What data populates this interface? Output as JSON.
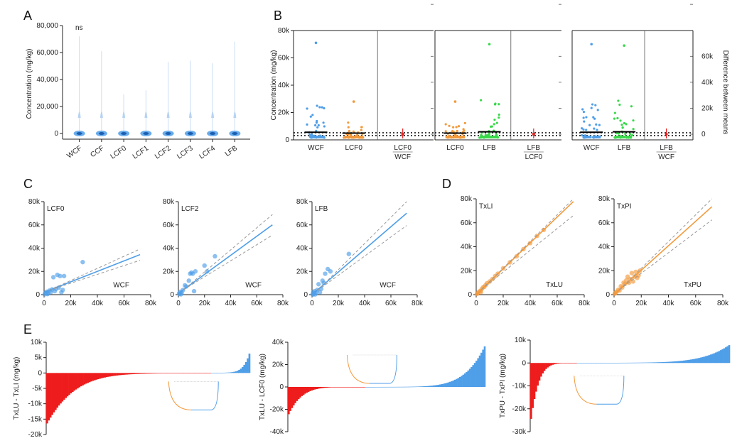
{
  "panel_letters": [
    "A",
    "B",
    "C",
    "D",
    "E"
  ],
  "colors": {
    "blue": "#4f9ee8",
    "orange": "#f39a3c",
    "green": "#39d94a",
    "red": "#ee1c1c",
    "gray": "#999999"
  },
  "chart_data": [
    {
      "id": "A",
      "type": "violin",
      "categories": [
        "WCF",
        "CCF",
        "LCF0",
        "LCF1",
        "LCF2",
        "LCF3",
        "LCF4",
        "LFB"
      ],
      "max_values": [
        72000,
        61000,
        29000,
        32000,
        53000,
        54000,
        52000,
        68000
      ],
      "ylabel": "Concentration (mg/kg)",
      "yticks": [
        "0",
        "20,000",
        "40,000",
        "60,000",
        "80,000"
      ],
      "ylim": [
        0,
        80000
      ],
      "annotation": "ns"
    },
    {
      "id": "B",
      "type": "estimation_plot",
      "ylabel": "Concentration (mg/kg)",
      "ylabel_right": "Difference between means",
      "yticks": [
        "0",
        "20k",
        "40k",
        "60k",
        "80k"
      ],
      "yticks_right": [
        "0",
        "20k",
        "40k",
        "60k"
      ],
      "ylim": [
        0,
        80000
      ],
      "subplots": [
        {
          "groups": [
            "WCF",
            "LCF0"
          ],
          "colors": [
            "blue",
            "orange"
          ],
          "diff_label": [
            "LCF0",
            "WCF"
          ],
          "group_max": [
            71000,
            28000
          ],
          "mean": [
            2500,
            1800
          ]
        },
        {
          "groups": [
            "LCF0",
            "LFB"
          ],
          "colors": [
            "orange",
            "green"
          ],
          "diff_label": [
            "LFB",
            "LCF0"
          ],
          "group_max": [
            28000,
            70000
          ],
          "mean": [
            1800,
            2800
          ]
        },
        {
          "groups": [
            "WCF",
            "LFB"
          ],
          "colors": [
            "blue",
            "green"
          ],
          "diff_label": [
            "LFB",
            "WCF"
          ],
          "group_max": [
            70000,
            69000
          ],
          "mean": [
            2500,
            2800
          ]
        }
      ]
    },
    {
      "id": "C",
      "type": "scatter",
      "xticks": [
        "0",
        "20k",
        "40k",
        "60k",
        "80k"
      ],
      "yticks": [
        "0",
        "20k",
        "40k",
        "60k",
        "80k"
      ],
      "xlim": [
        0,
        80000
      ],
      "ylim": [
        0,
        80000
      ],
      "subplots": [
        {
          "label": "LCF0",
          "xlabel": "WCF",
          "slope": 0.45,
          "intercept": 2000,
          "points": [
            [
              1000,
              1500
            ],
            [
              2000,
              2500
            ],
            [
              3000,
              1000
            ],
            [
              4000,
              3500
            ],
            [
              5000,
              2000
            ],
            [
              6000,
              4500
            ],
            [
              7000,
              15000
            ],
            [
              8000,
              3000
            ],
            [
              9000,
              5000
            ],
            [
              10000,
              17000
            ],
            [
              11000,
              6000
            ],
            [
              12000,
              16000
            ],
            [
              13000,
              2000
            ],
            [
              14000,
              4000
            ],
            [
              15000,
              16000
            ],
            [
              29000,
              28000
            ],
            [
              2500,
              500
            ],
            [
              500,
              300
            ]
          ]
        },
        {
          "label": "LCF2",
          "xlabel": "WCF",
          "slope": 0.82,
          "intercept": 1000,
          "points": [
            [
              500,
              1000
            ],
            [
              1500,
              2500
            ],
            [
              2500,
              1500
            ],
            [
              3500,
              4000
            ],
            [
              5000,
              8000
            ],
            [
              6000,
              7000
            ],
            [
              8000,
              12000
            ],
            [
              9000,
              18000
            ],
            [
              10000,
              19000
            ],
            [
              11000,
              18000
            ],
            [
              12000,
              3000
            ],
            [
              13000,
              20000
            ],
            [
              20000,
              25000
            ],
            [
              22000,
              20000
            ],
            [
              28000,
              33000
            ],
            [
              1000,
              500
            ],
            [
              2000,
              300
            ]
          ]
        },
        {
          "label": "LFB",
          "xlabel": "WCF",
          "slope": 0.98,
          "intercept": -500,
          "points": [
            [
              500,
              500
            ],
            [
              1000,
              2000
            ],
            [
              1500,
              1000
            ],
            [
              2000,
              3000
            ],
            [
              3000,
              1500
            ],
            [
              4000,
              4000
            ],
            [
              5000,
              9000
            ],
            [
              6000,
              2000
            ],
            [
              7000,
              5000
            ],
            [
              8000,
              12000
            ],
            [
              9000,
              10000
            ],
            [
              10000,
              18000
            ],
            [
              12000,
              22000
            ],
            [
              14000,
              20000
            ],
            [
              28000,
              35000
            ],
            [
              2500,
              200
            ],
            [
              800,
              100
            ]
          ]
        }
      ]
    },
    {
      "id": "D",
      "type": "scatter",
      "xticks": [
        "0",
        "20k",
        "40k",
        "60k",
        "80k"
      ],
      "yticks": [
        "0",
        "20k",
        "40k",
        "60k",
        "80k"
      ],
      "xlim": [
        0,
        80000
      ],
      "ylim": [
        0,
        80000
      ],
      "subplots": [
        {
          "label": "TxLI",
          "xlabel": "TxLU",
          "slope": 1.08,
          "intercept": 0,
          "points": [
            [
              500,
              500
            ],
            [
              1000,
              1200
            ],
            [
              2000,
              2500
            ],
            [
              3000,
              3000
            ],
            [
              4000,
              4500
            ],
            [
              5000,
              6000
            ],
            [
              6000,
              6500
            ],
            [
              7000,
              8000
            ],
            [
              8000,
              9500
            ],
            [
              10000,
              11000
            ],
            [
              12000,
              13000
            ],
            [
              14000,
              15500
            ],
            [
              16000,
              17500
            ],
            [
              20000,
              22000
            ],
            [
              25000,
              27000
            ],
            [
              30000,
              32000
            ],
            [
              35000,
              38000
            ],
            [
              40000,
              43000
            ],
            [
              45000,
              49000
            ],
            [
              50000,
              54000
            ],
            [
              3500,
              2000
            ]
          ]
        },
        {
          "label": "TxPI",
          "xlabel": "TxPU",
          "slope": 1.02,
          "intercept": 0,
          "points": [
            [
              500,
              800
            ],
            [
              1000,
              1500
            ],
            [
              2000,
              2500
            ],
            [
              3000,
              4000
            ],
            [
              4000,
              3500
            ],
            [
              5000,
              7000
            ],
            [
              6000,
              6000
            ],
            [
              7000,
              10000
            ],
            [
              8000,
              9000
            ],
            [
              9000,
              12000
            ],
            [
              10000,
              15000
            ],
            [
              11000,
              10000
            ],
            [
              12000,
              13000
            ],
            [
              13000,
              18000
            ],
            [
              14000,
              11000
            ],
            [
              15000,
              15000
            ],
            [
              16000,
              19000
            ],
            [
              17000,
              14000
            ],
            [
              18000,
              16000
            ],
            [
              19000,
              20000
            ]
          ]
        }
      ]
    },
    {
      "id": "E",
      "type": "waterfall_bar",
      "subplots": [
        {
          "ylabel": "TxLU - TxLI (mg/kg)",
          "yticks": [
            "10k",
            "5k",
            "0",
            "-5k",
            "-10k",
            "-15k",
            "-20k"
          ],
          "ylim": [
            -20000,
            10000
          ],
          "min_value": -16000,
          "max_value": 6000,
          "negative_fraction": 0.82
        },
        {
          "ylabel": "TxLU - LCF0 (mg/kg)",
          "yticks": [
            "40k",
            "20k",
            "0",
            "-20k",
            "-40k"
          ],
          "ylim": [
            -40000,
            40000
          ],
          "min_value": -24000,
          "max_value": 36000,
          "negative_fraction": 0.4
        },
        {
          "ylabel": "TxPU - TxPI (mg/kg)",
          "yticks": [
            "10k",
            "0",
            "-10k",
            "-20k",
            "-30k"
          ],
          "ylim": [
            -30000,
            10000
          ],
          "min_value": -24000,
          "max_value": 7500,
          "negative_fraction": 0.24
        }
      ]
    }
  ]
}
